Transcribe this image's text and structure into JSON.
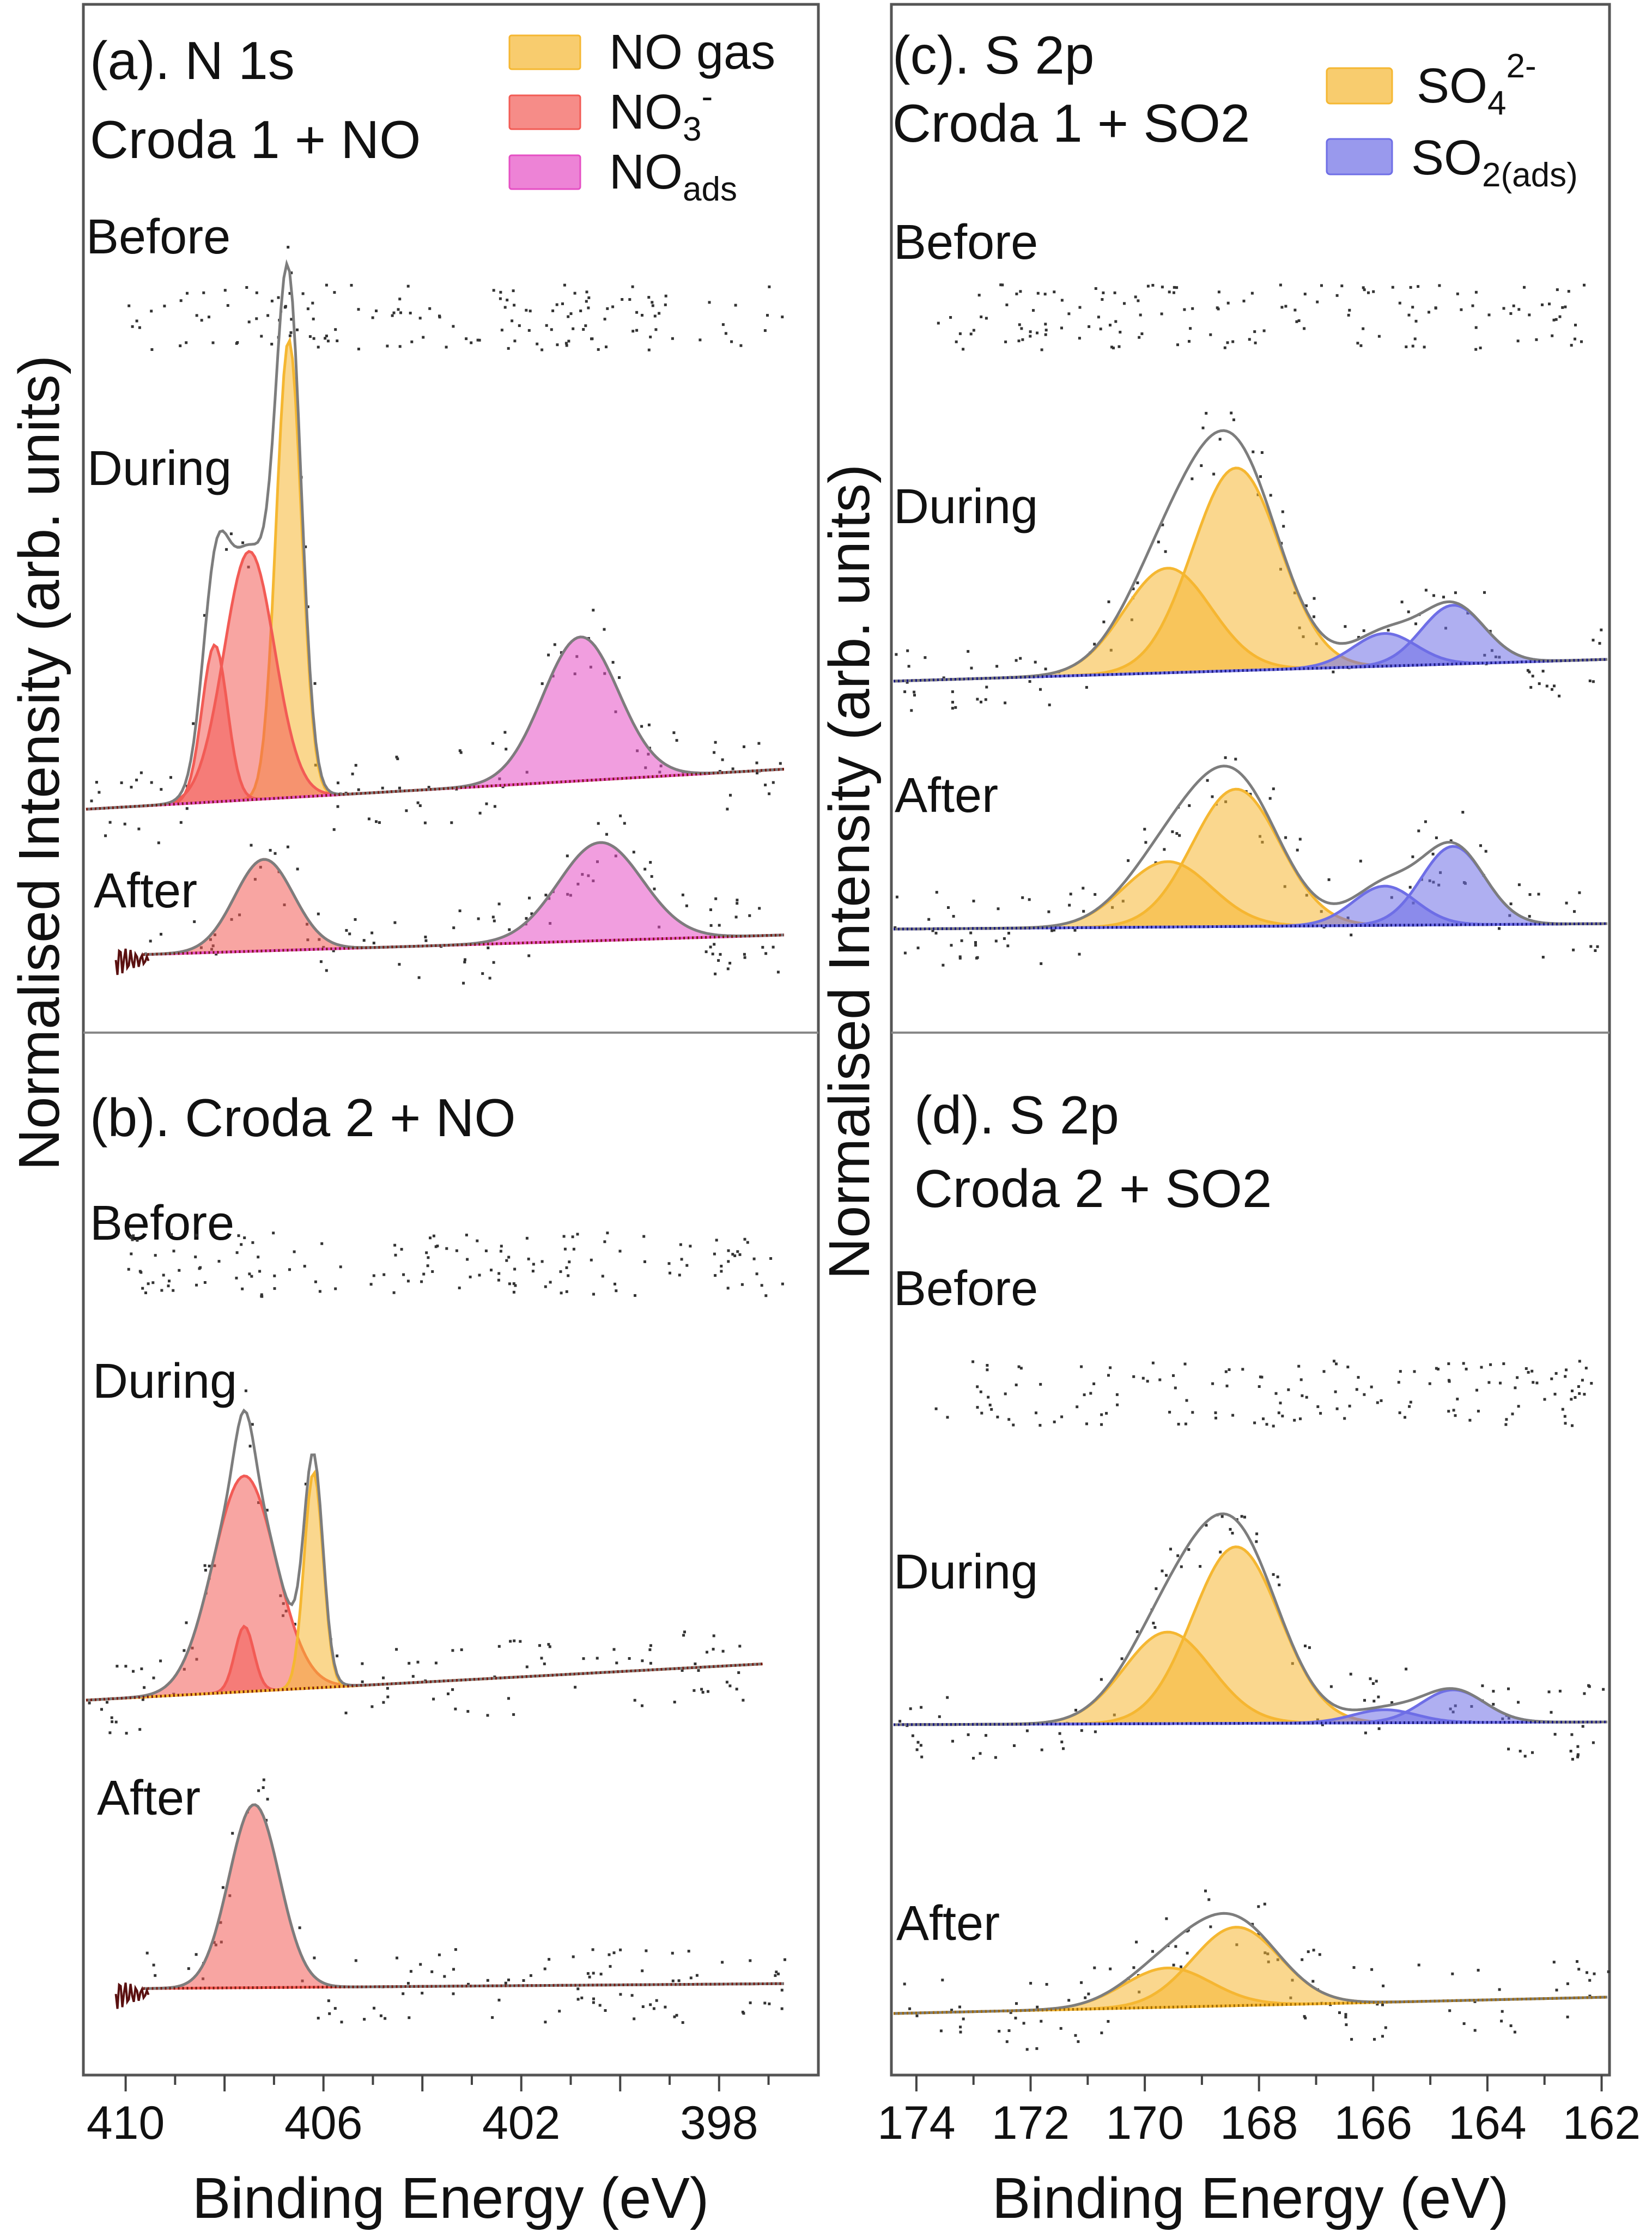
{
  "chart_data": [
    {
      "id": "a",
      "type": "line",
      "title": "(a). N 1s",
      "subtitle": "Croda 1 + NO",
      "x_axis": {
        "label": "Binding Energy (eV)",
        "range": [
          410.8,
          396.4
        ],
        "ticks": [
          "410",
          "406",
          "402",
          "398"
        ]
      },
      "y_axis": {
        "label": "Normalised Intensity (arb. units)"
      },
      "legend": [
        {
          "label": "NO gas",
          "color": "#f5b731"
        },
        {
          "label": "NO3-",
          "color": "#f25b55"
        },
        {
          "label": "NOads",
          "color": "#e54fc4"
        }
      ],
      "traces": [
        {
          "label": "Before",
          "peaks": []
        },
        {
          "label": "During",
          "peaks": [
            {
              "component": "NO gas",
              "center": 406.7,
              "height": 0.7,
              "fwhm": 0.6
            },
            {
              "component": "NO3-",
              "center": 407.5,
              "height": 0.38,
              "fwhm": 1.2
            },
            {
              "component": "NO3-",
              "center": 408.2,
              "height": 0.24,
              "fwhm": 0.6
            },
            {
              "component": "NOads",
              "center": 400.8,
              "height": 0.22,
              "fwhm": 1.8
            }
          ]
        },
        {
          "label": "After",
          "peaks": [
            {
              "component": "NO3-",
              "center": 407.2,
              "height": 0.14,
              "fwhm": 1.4
            },
            {
              "component": "NOads",
              "center": 400.4,
              "height": 0.15,
              "fwhm": 2.0
            }
          ]
        }
      ]
    },
    {
      "id": "b",
      "type": "line",
      "title": "(b). Croda 2 + NO",
      "subtitle": "",
      "x_axis": {
        "label": "Binding Energy (eV)",
        "range": [
          410.8,
          396.4
        ],
        "ticks": [
          "410",
          "406",
          "402",
          "398"
        ]
      },
      "y_axis": {
        "label": "Normalised Intensity (arb. units)"
      },
      "legend": [],
      "traces": [
        {
          "label": "Before",
          "peaks": []
        },
        {
          "label": "During",
          "peaks": [
            {
              "component": "NO3-",
              "center": 407.6,
              "height": 0.33,
              "fwhm": 1.5
            },
            {
              "component": "NO3-",
              "center": 407.6,
              "height": 0.1,
              "fwhm": 0.45
            },
            {
              "component": "NO gas",
              "center": 406.2,
              "height": 0.33,
              "fwhm": 0.45
            }
          ]
        },
        {
          "label": "After",
          "peaks": [
            {
              "component": "NO3-",
              "center": 407.4,
              "height": 0.28,
              "fwhm": 1.2
            }
          ]
        }
      ]
    },
    {
      "id": "c",
      "type": "line",
      "title": "(c). S 2p",
      "subtitle": "Croda 1 + SO2",
      "x_axis": {
        "label": "Binding Energy (eV)",
        "range": [
          174.4,
          161.9
        ],
        "ticks": [
          "174",
          "172",
          "170",
          "168",
          "166",
          "164",
          "162"
        ]
      },
      "y_axis": {
        "label": "Normalised Intensity (arb. units)"
      },
      "legend": [
        {
          "label": "SO42-",
          "color": "#f5b731"
        },
        {
          "label": "SO2(ads)",
          "color": "#6e6ee6"
        }
      ],
      "traces": [
        {
          "label": "Before",
          "peaks": []
        },
        {
          "label": "During",
          "peaks": [
            {
              "component": "SO42-",
              "center": 169.6,
              "height": 0.16,
              "fwhm": 1.8
            },
            {
              "component": "SO42-",
              "center": 168.4,
              "height": 0.31,
              "fwhm": 1.8
            },
            {
              "component": "SO2(ads)",
              "center": 165.8,
              "height": 0.05,
              "fwhm": 1.3
            },
            {
              "component": "SO2(ads)",
              "center": 164.6,
              "height": 0.09,
              "fwhm": 1.3
            }
          ]
        },
        {
          "label": "After",
          "peaks": [
            {
              "component": "SO42-",
              "center": 169.6,
              "height": 0.1,
              "fwhm": 1.8
            },
            {
              "component": "SO42-",
              "center": 168.4,
              "height": 0.21,
              "fwhm": 1.8
            },
            {
              "component": "SO2(ads)",
              "center": 165.8,
              "height": 0.06,
              "fwhm": 1.3
            },
            {
              "component": "SO2(ads)",
              "center": 164.6,
              "height": 0.12,
              "fwhm": 1.3
            }
          ]
        }
      ]
    },
    {
      "id": "d",
      "type": "line",
      "title": "(d). S 2p",
      "subtitle": "Croda 2 + SO2",
      "x_axis": {
        "label": "Binding Energy (eV)",
        "range": [
          174.4,
          161.9
        ],
        "ticks": [
          "174",
          "172",
          "170",
          "168",
          "166",
          "164",
          "162"
        ]
      },
      "y_axis": {
        "label": "Normalised Intensity (arb. units)"
      },
      "legend": [],
      "traces": [
        {
          "label": "Before",
          "peaks": []
        },
        {
          "label": "During",
          "peaks": [
            {
              "component": "SO42-",
              "center": 169.6,
              "height": 0.14,
              "fwhm": 1.8
            },
            {
              "component": "SO42-",
              "center": 168.4,
              "height": 0.27,
              "fwhm": 1.8
            },
            {
              "component": "SO2(ads)",
              "center": 165.8,
              "height": 0.02,
              "fwhm": 1.3
            },
            {
              "component": "SO2(ads)",
              "center": 164.6,
              "height": 0.05,
              "fwhm": 1.3
            }
          ]
        },
        {
          "label": "After",
          "peaks": [
            {
              "component": "SO42-",
              "center": 169.6,
              "height": 0.06,
              "fwhm": 1.8
            },
            {
              "component": "SO42-",
              "center": 168.4,
              "height": 0.12,
              "fwhm": 1.8
            }
          ]
        }
      ]
    }
  ]
}
